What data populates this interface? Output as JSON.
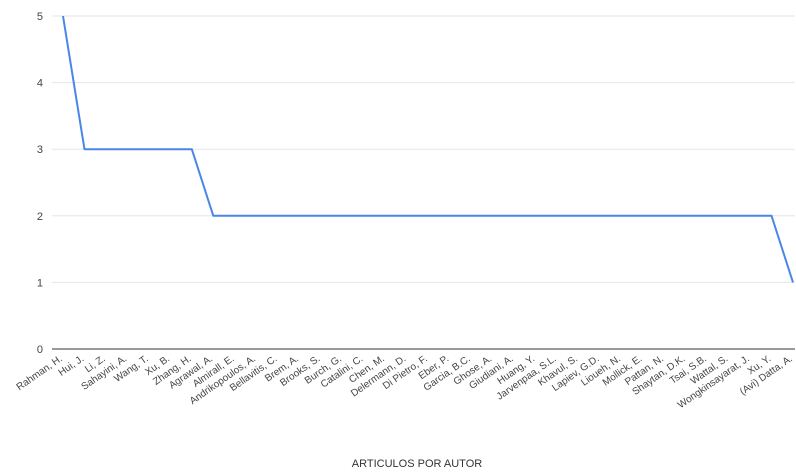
{
  "chart_data": {
    "type": "line",
    "xlabel": "ARTICULOS POR AUTOR",
    "ylabel": "",
    "ylim": [
      0,
      5
    ],
    "yticks": [
      0,
      1,
      2,
      3,
      4,
      5
    ],
    "grid": true,
    "legend": "none",
    "line_color": "#4a86e8",
    "categories": [
      "Rahman, H.",
      "Hui, J.",
      "Li, Z.",
      "Sahayini, A.",
      "Wang, T.",
      "Xu, B.",
      "Zhang, H.",
      "Agrawal, A.",
      "Almirall, E.",
      "Andrikopoulos, A.",
      "Bellavitis, C.",
      "Brem, A.",
      "Brooks, S.",
      "Burch, G.",
      "Catalini, C.",
      "Chen, M.",
      "Delermann, D.",
      "Di Pietro, F.",
      "Eber, P.",
      "Garcia, B.C.",
      "Ghose, A.",
      "Giudiani, A.",
      "Huang, Y.",
      "Jarvenpaa, S.L.",
      "Khavul, S.",
      "Lapiev, G.D.",
      "Lioueh, N.",
      "Mollick, E.",
      "Pattan, N.",
      "Shaytan, D.K.",
      "Tsai, S.B.",
      "Wattal, S.",
      "Wongkinsayarat, J.",
      "Xu, Y.",
      "(Avi) Datta, A."
    ],
    "series": [
      {
        "values": [
          5,
          3,
          3,
          3,
          3,
          3,
          3,
          2,
          2,
          2,
          2,
          2,
          2,
          2,
          2,
          2,
          2,
          2,
          2,
          2,
          2,
          2,
          2,
          2,
          2,
          2,
          2,
          2,
          2,
          2,
          2,
          2,
          2,
          2,
          1
        ]
      }
    ]
  }
}
